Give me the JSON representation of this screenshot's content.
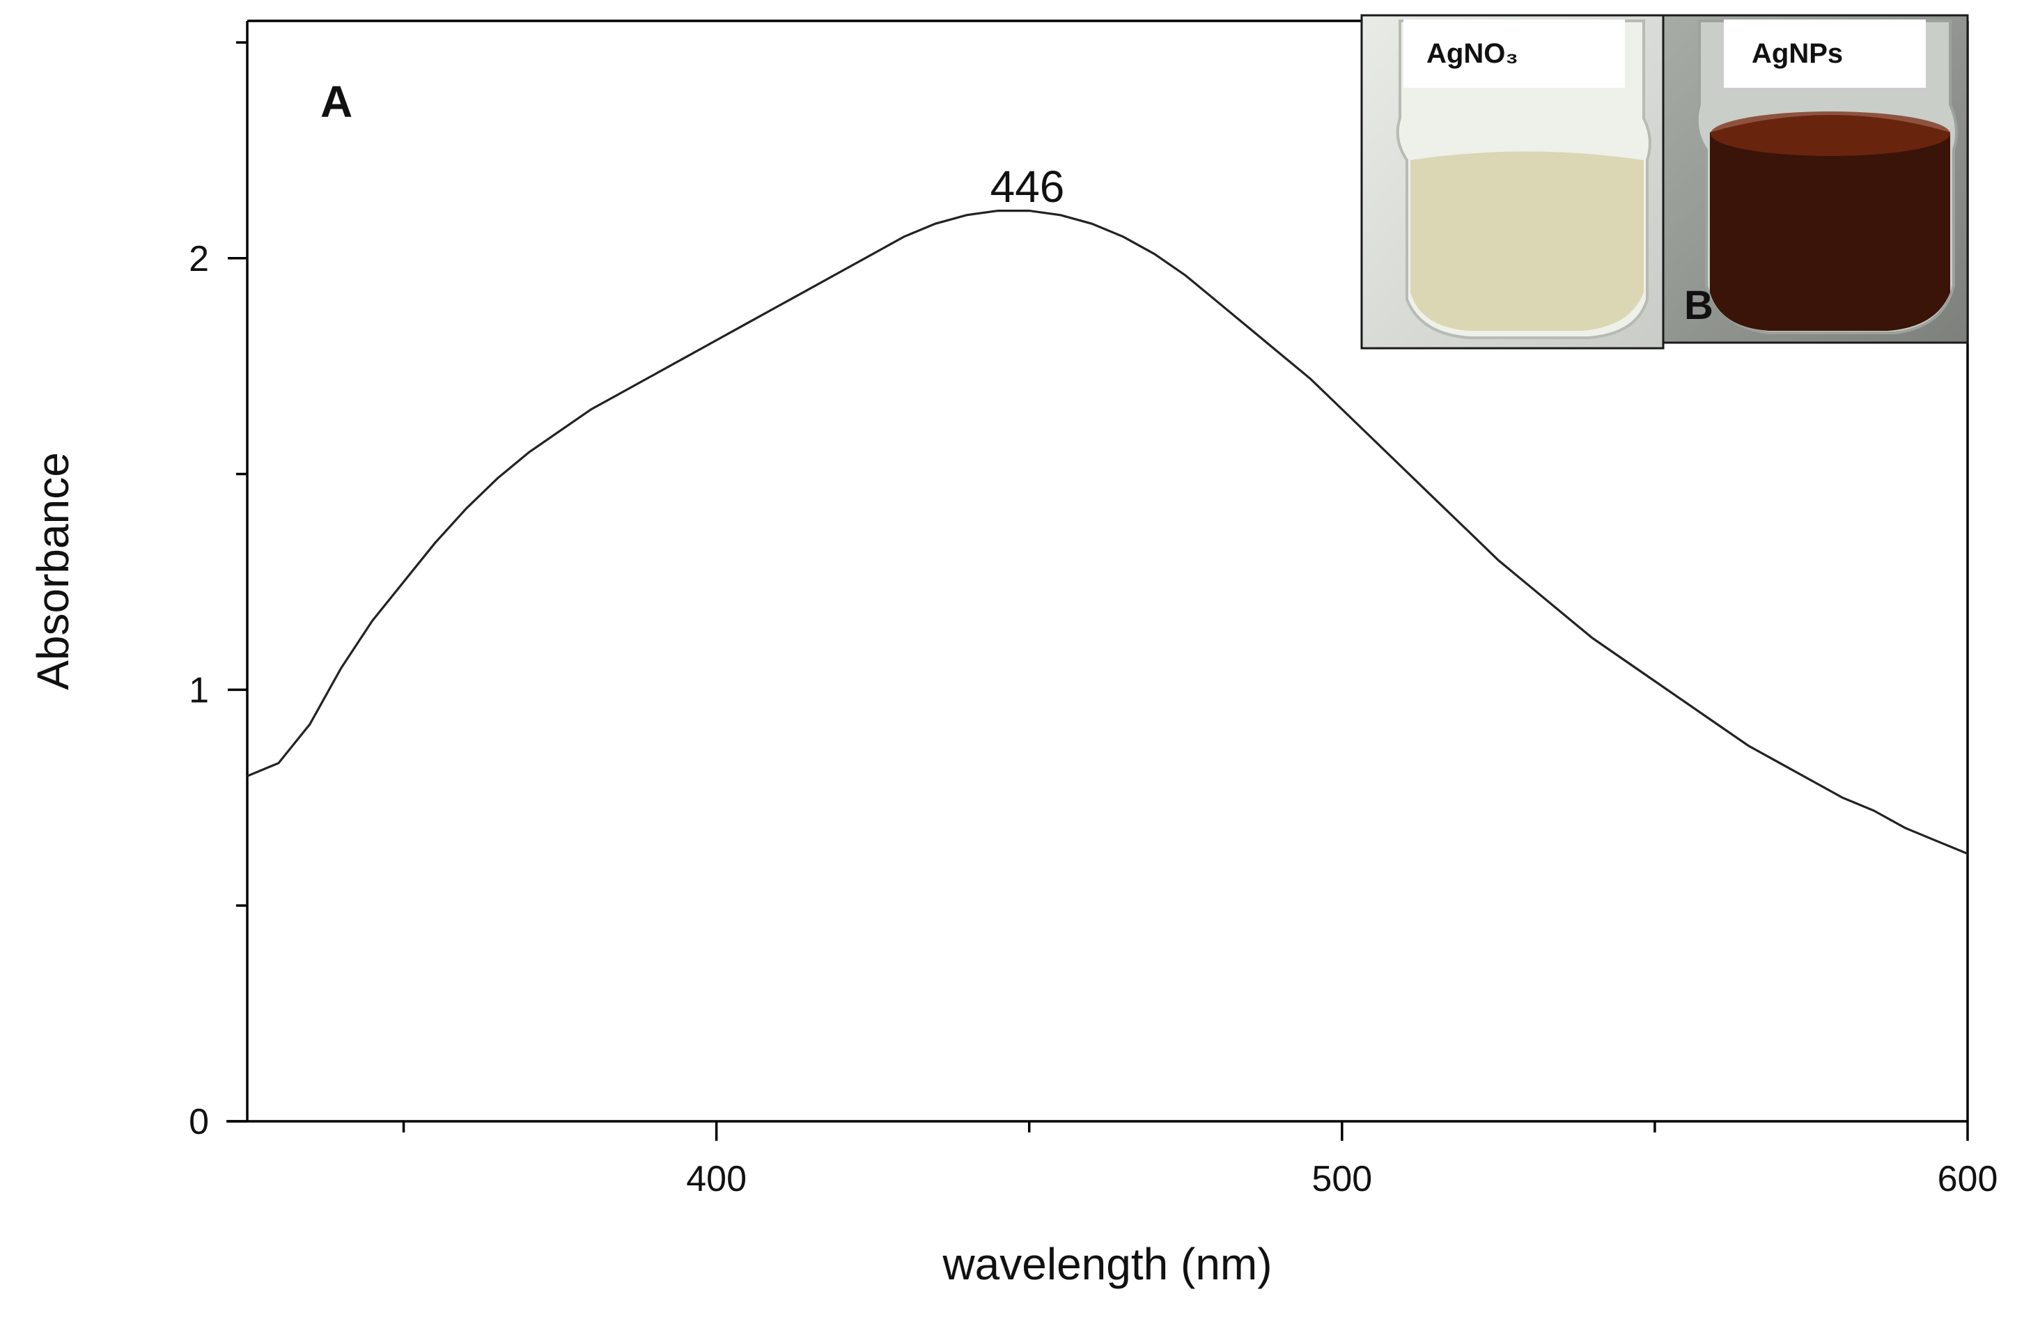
{
  "chart_data": {
    "type": "line",
    "panel_label": "A",
    "xlabel": "wavelength (nm)",
    "ylabel": "Absorbance",
    "xlim": [
      325,
      600
    ],
    "ylim": [
      0,
      2.55
    ],
    "x_ticks": [
      400,
      500,
      600
    ],
    "x_minor_ticks": [
      350,
      450,
      550
    ],
    "y_ticks": [
      0,
      1,
      2
    ],
    "y_minor_ticks": [
      0.5,
      1.5,
      2.5
    ],
    "grid": false,
    "peak": {
      "label": "446",
      "x": 446,
      "y": 2.11
    },
    "series": [
      {
        "x": [
          325,
          330,
          335,
          340,
          345,
          350,
          355,
          360,
          365,
          370,
          375,
          380,
          385,
          390,
          395,
          400,
          405,
          410,
          415,
          420,
          425,
          430,
          435,
          440,
          445,
          450,
          455,
          460,
          465,
          470,
          475,
          480,
          485,
          490,
          495,
          500,
          505,
          510,
          515,
          520,
          525,
          530,
          535,
          540,
          545,
          550,
          555,
          560,
          565,
          570,
          575,
          580,
          585,
          590,
          595,
          600
        ],
        "y": [
          0.8,
          0.83,
          0.92,
          1.05,
          1.16,
          1.25,
          1.34,
          1.42,
          1.49,
          1.55,
          1.6,
          1.65,
          1.69,
          1.73,
          1.77,
          1.81,
          1.85,
          1.89,
          1.93,
          1.97,
          2.01,
          2.05,
          2.08,
          2.1,
          2.11,
          2.11,
          2.1,
          2.08,
          2.05,
          2.01,
          1.96,
          1.9,
          1.84,
          1.78,
          1.72,
          1.65,
          1.58,
          1.51,
          1.44,
          1.37,
          1.3,
          1.24,
          1.18,
          1.12,
          1.07,
          1.02,
          0.97,
          0.92,
          0.87,
          0.83,
          0.79,
          0.75,
          0.72,
          0.68,
          0.65,
          0.62
        ]
      }
    ]
  },
  "inset": {
    "panel_label": "B",
    "photos": [
      {
        "label": "AgNO₃",
        "liquid_color": "#d9d4ae"
      },
      {
        "label": "AgNPs",
        "liquid_color": "#3a1408"
      }
    ]
  }
}
